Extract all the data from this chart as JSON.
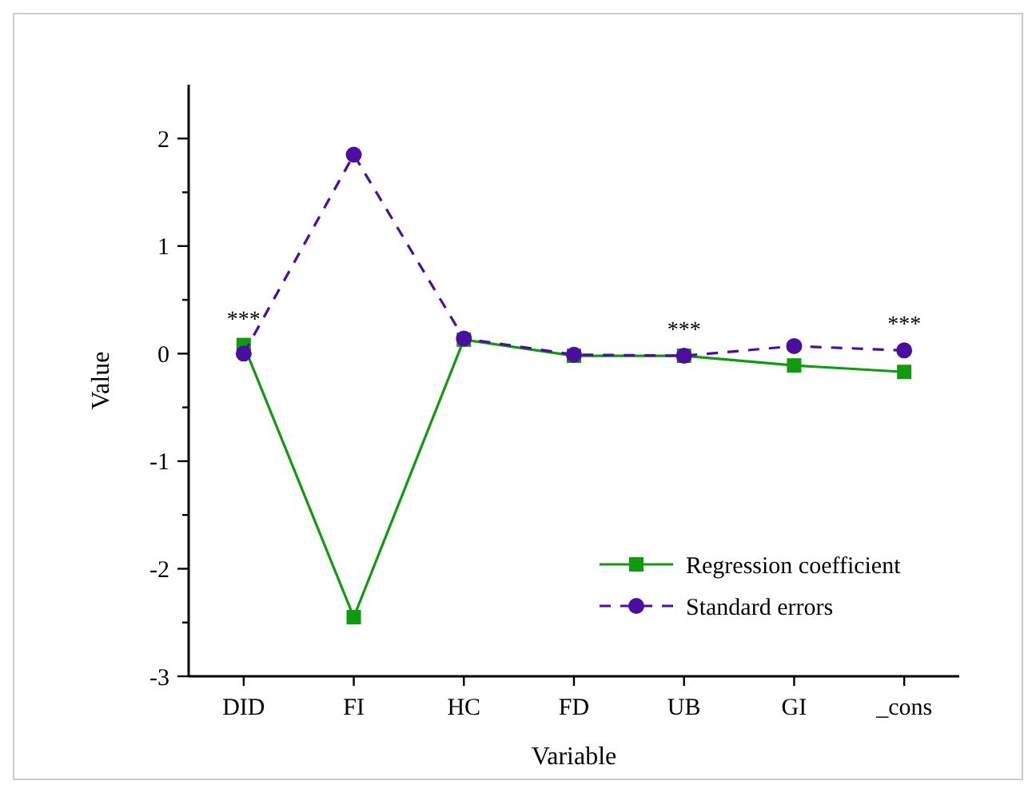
{
  "chart_data": {
    "type": "line",
    "xlabel": "Variable",
    "ylabel": "Value",
    "categories": [
      "DID",
      "FI",
      "HC",
      "FD",
      "UB",
      "GI",
      "_cons"
    ],
    "series": [
      {
        "name": "Regression coefficient",
        "color": "#109a10",
        "values": [
          0.08,
          -2.45,
          0.13,
          -0.02,
          -0.02,
          -0.11,
          -0.17
        ],
        "marker": "square",
        "line_style": "solid"
      },
      {
        "name": "Standard errors",
        "color": "#4b0fa0",
        "values": [
          0.0,
          1.85,
          0.14,
          -0.01,
          -0.02,
          0.07,
          0.03
        ],
        "marker": "circle",
        "line_style": "dashed"
      }
    ],
    "ylim": [
      -3,
      2.5
    ],
    "yticks": [
      -3,
      {
        "value": -2.5,
        "label": null
      },
      -2,
      {
        "value": -1.5,
        "label": null
      },
      -1,
      {
        "value": -0.5,
        "label": null
      },
      0,
      {
        "value": 0.5,
        "label": null
      },
      1,
      {
        "value": 1.5,
        "label": null
      },
      2
    ],
    "annotations": [
      {
        "text": "***",
        "x": "DID",
        "y": 0.08
      },
      {
        "text": "***",
        "x": "UB",
        "y": -0.02
      },
      {
        "text": "***",
        "x": "_cons",
        "y": 0.03
      }
    ],
    "legend": "bottom right",
    "grid": false
  }
}
